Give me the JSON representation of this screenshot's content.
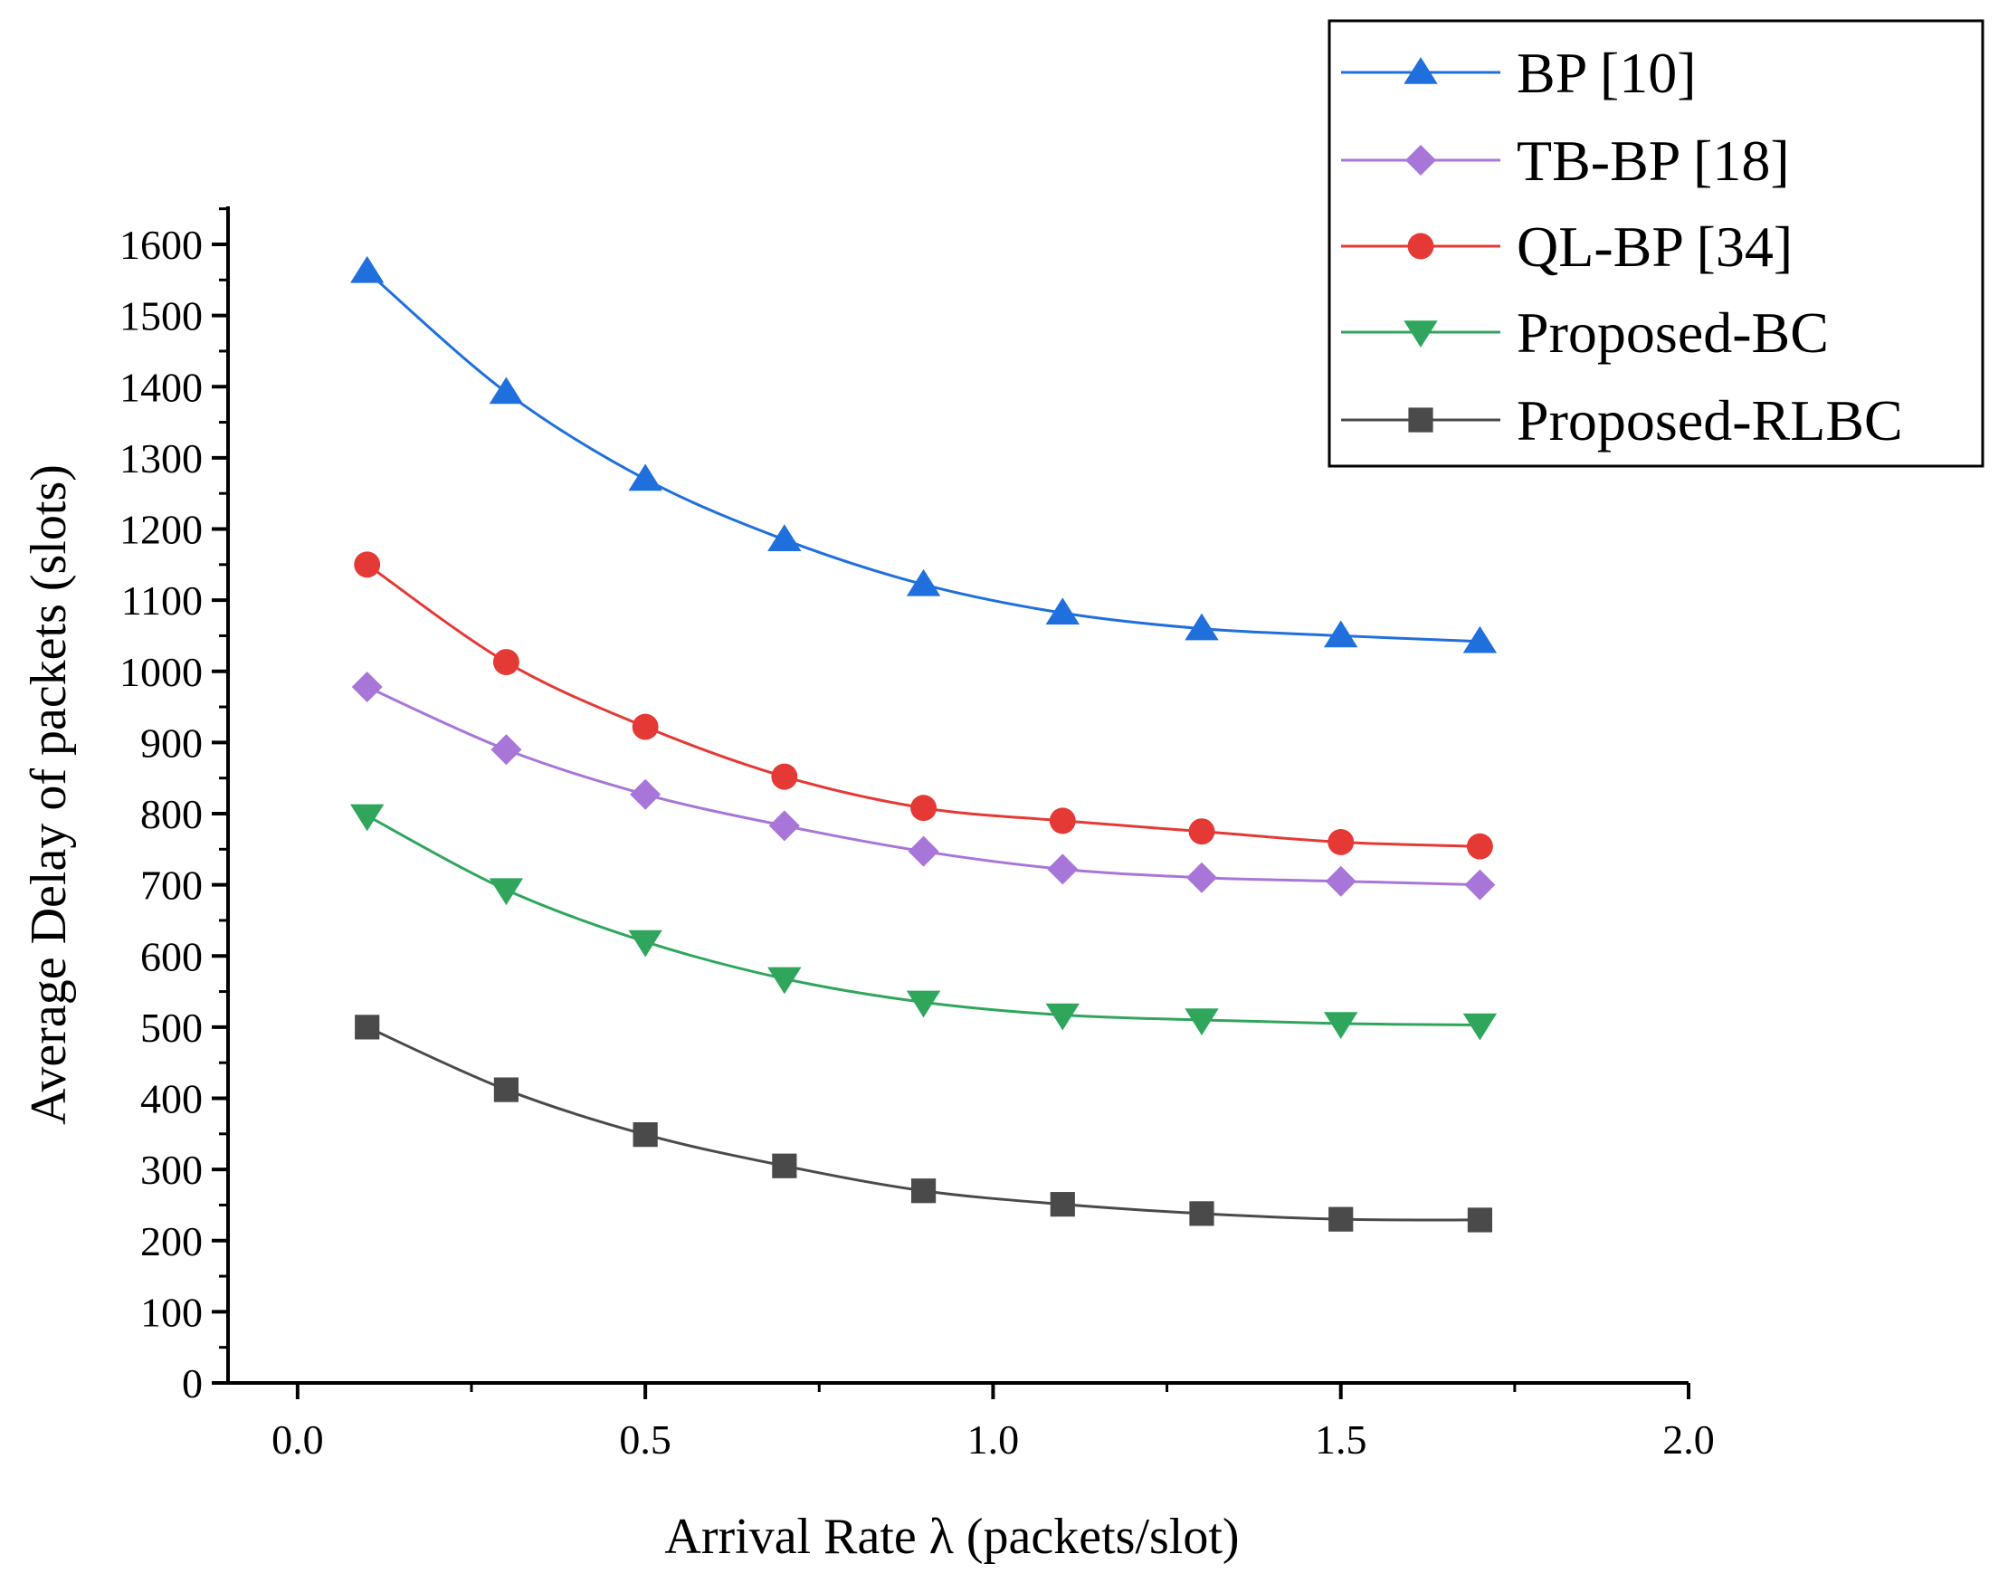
{
  "chart_data": {
    "type": "line",
    "title": "",
    "xlabel": "Arrival Rate λ (packets/slot)",
    "ylabel": "Average Delay of packets (slots)",
    "xlim": [
      -0.1,
      2.0
    ],
    "ylim": [
      0,
      1600
    ],
    "x_ticks": [
      "0.0",
      "0.5",
      "1.0",
      "1.5",
      "2.0"
    ],
    "y_ticks": [
      "0",
      "100",
      "200",
      "300",
      "400",
      "500",
      "600",
      "700",
      "800",
      "900",
      "1000",
      "1100",
      "1200",
      "1300",
      "1400",
      "1500",
      "1600"
    ],
    "x": [
      0.1,
      0.3,
      0.5,
      0.7,
      0.9,
      1.1,
      1.3,
      1.5,
      1.7
    ],
    "legend_position": "top-right",
    "series": [
      {
        "name": "BP [10]",
        "color": "#1f6fdc",
        "marker": "triangle-up",
        "values": [
          1562,
          1392,
          1270,
          1185,
          1122,
          1082,
          1060,
          1050,
          1042
        ]
      },
      {
        "name": "TB-BP [18]",
        "color": "#a875d9",
        "marker": "diamond",
        "values": [
          978,
          890,
          827,
          783,
          747,
          722,
          710,
          705,
          700
        ]
      },
      {
        "name": "QL-BP [34]",
        "color": "#e53935",
        "marker": "circle",
        "values": [
          1150,
          1013,
          922,
          852,
          808,
          790,
          775,
          760,
          754
        ]
      },
      {
        "name": "Proposed-BC",
        "color": "#2fa65c",
        "marker": "triangle-down",
        "values": [
          797,
          693,
          620,
          568,
          535,
          517,
          510,
          505,
          503
        ]
      },
      {
        "name": "Proposed-RLBC",
        "color": "#4a4a4a",
        "marker": "square",
        "values": [
          500,
          412,
          349,
          305,
          270,
          251,
          238,
          230,
          229
        ]
      }
    ]
  }
}
